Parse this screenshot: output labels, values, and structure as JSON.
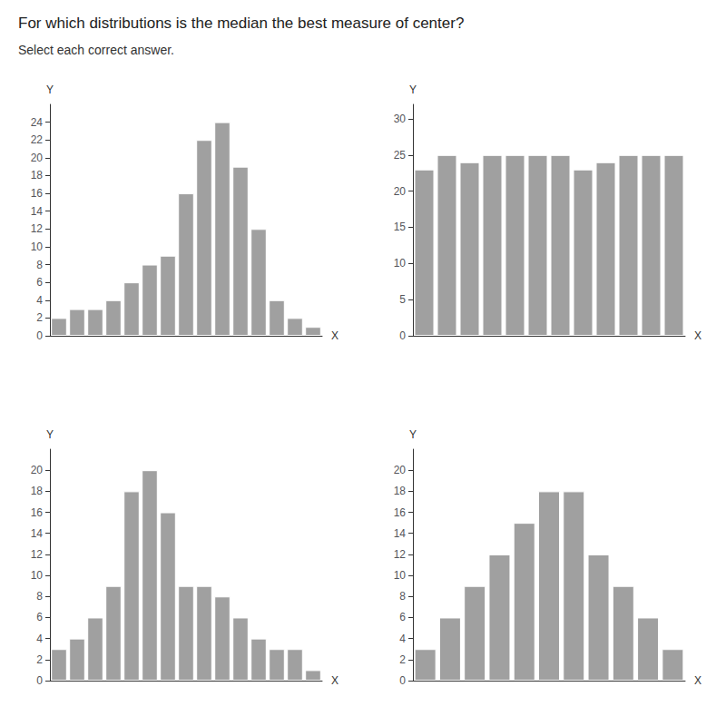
{
  "chart_data": [
    {
      "type": "bar",
      "title": "For which distributions is the median the best measure of center?",
      "subtitle": "Select each correct answer.",
      "categories": [
        null,
        null,
        null,
        null,
        null,
        null,
        null,
        null,
        null,
        null,
        null,
        null,
        null,
        null,
        null
      ],
      "values": [
        2,
        3,
        3,
        4,
        6,
        8,
        9,
        16,
        22,
        24,
        19,
        12,
        4,
        2,
        1
      ],
      "color": "#a0a0a0",
      "xlabel": "X",
      "ylabel": "Y",
      "ylim": [
        0,
        26
      ],
      "yticks": [
        0,
        2,
        4,
        6,
        8,
        10,
        12,
        14,
        16,
        18,
        20,
        22,
        24
      ],
      "grid": false,
      "tick_labels": "y"
    },
    {
      "type": "bar",
      "categories": [
        null,
        null,
        null,
        null,
        null,
        null,
        null,
        null,
        null,
        null,
        null,
        null
      ],
      "values": [
        23,
        25,
        24,
        25,
        25,
        25,
        25,
        23,
        24,
        25,
        25,
        25
      ],
      "color": "#a0a0a0",
      "xlabel": "X",
      "ylabel": "Y",
      "ylim": [
        0,
        32
      ],
      "yticks": [
        0,
        5,
        10,
        15,
        20,
        25,
        30
      ],
      "grid": false,
      "tick_labels": "y"
    },
    {
      "type": "bar",
      "categories": [
        null,
        null,
        null,
        null,
        null,
        null,
        null,
        null,
        null,
        null,
        null,
        null,
        null,
        null,
        null
      ],
      "values": [
        3,
        4,
        6,
        9,
        18,
        20,
        16,
        9,
        9,
        8,
        6,
        4,
        3,
        3,
        1
      ],
      "color": "#a0a0a0",
      "xlabel": "X",
      "ylabel": "Y",
      "ylim": [
        0,
        22
      ],
      "yticks": [
        0,
        2,
        4,
        6,
        8,
        10,
        12,
        14,
        16,
        18,
        20
      ],
      "grid": false,
      "tick_labels": "y"
    },
    {
      "type": "bar",
      "categories": [
        null,
        null,
        null,
        null,
        null,
        null,
        null,
        null,
        null,
        null,
        null
      ],
      "values": [
        3,
        6,
        9,
        12,
        15,
        18,
        18,
        12,
        9,
        6,
        3
      ],
      "color": "#a0a0a0",
      "xlabel": "X",
      "ylabel": "Y",
      "ylim": [
        0,
        22
      ],
      "yticks": [
        0,
        2,
        4,
        6,
        8,
        10,
        12,
        14,
        16,
        18,
        20
      ],
      "grid": false,
      "tick_labels": "y"
    }
  ]
}
